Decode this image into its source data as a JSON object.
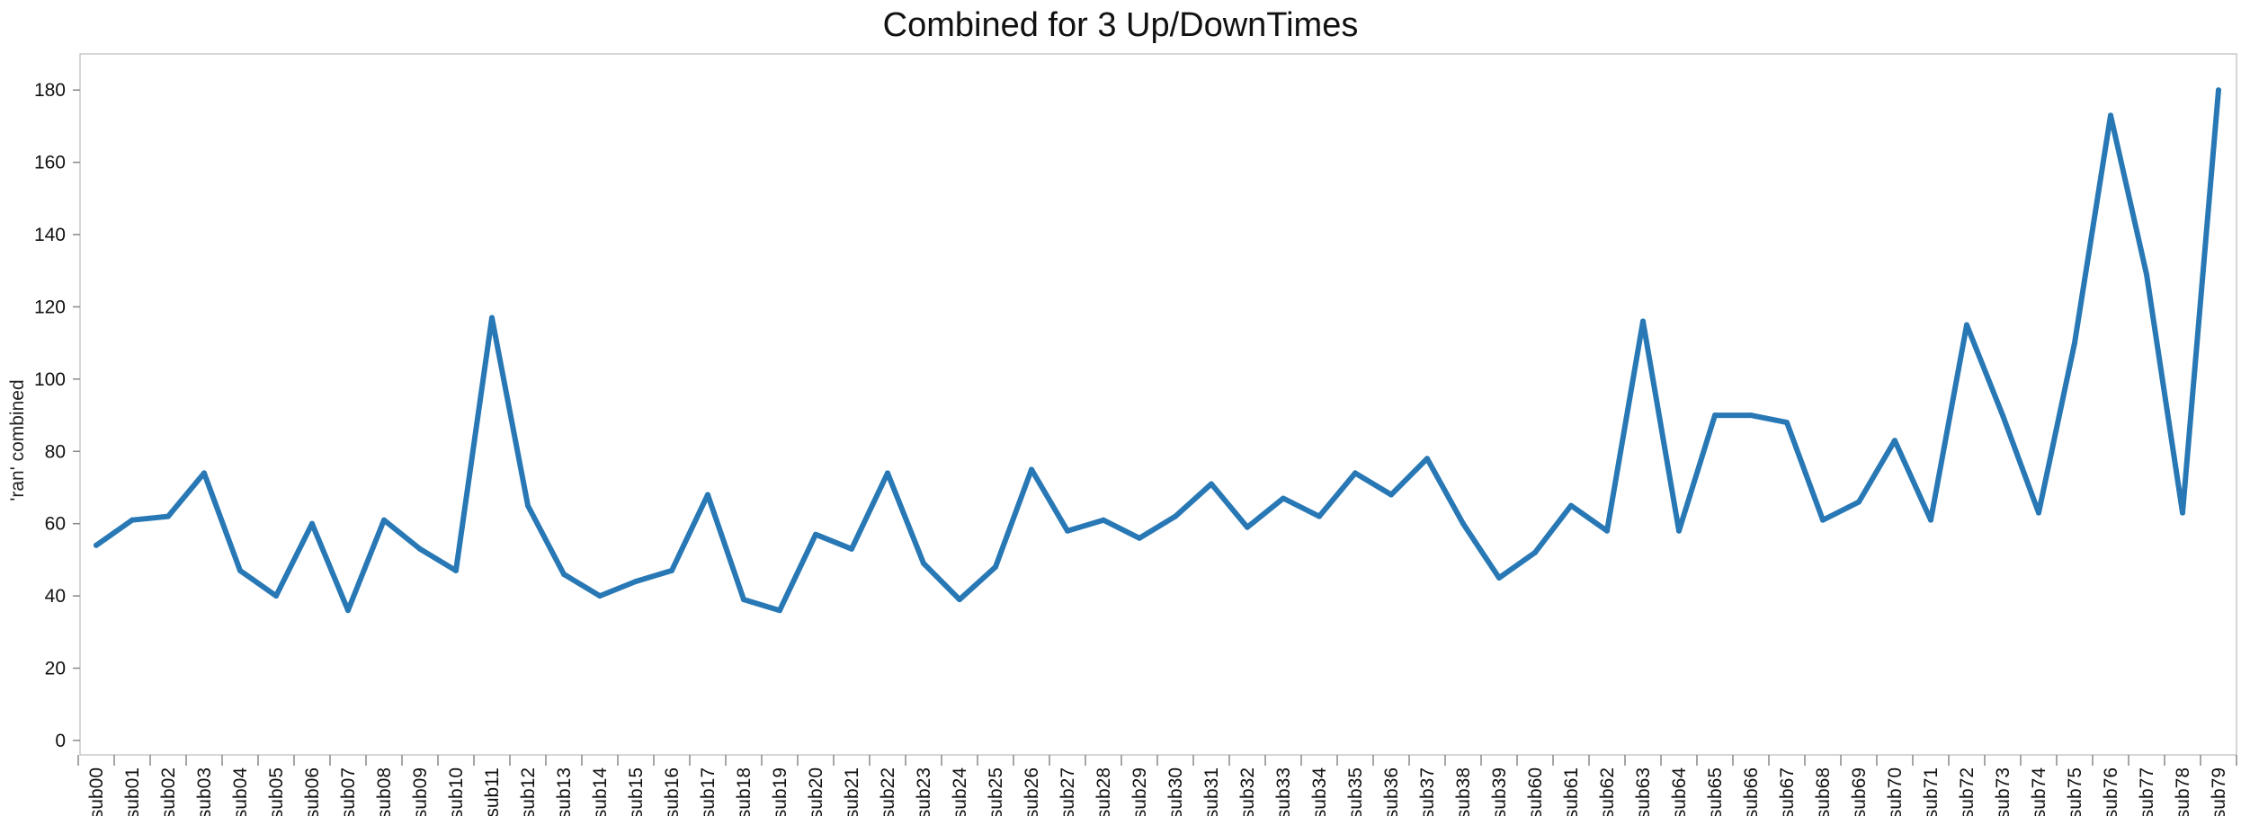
{
  "chart_data": {
    "type": "line",
    "title": "Combined for 3 Up/DownTimes",
    "xlabel": "",
    "ylabel": "'ran' combined",
    "ylim": [
      -4,
      190
    ],
    "yticks": [
      0,
      20,
      40,
      60,
      80,
      100,
      120,
      140,
      160,
      180
    ],
    "grid": false,
    "line_color": "#2878b5",
    "categories": [
      "sub00",
      "sub01",
      "sub02",
      "sub03",
      "sub04",
      "sub05",
      "sub06",
      "sub07",
      "sub08",
      "sub09",
      "sub10",
      "sub11",
      "sub12",
      "sub13",
      "sub14",
      "sub15",
      "sub16",
      "sub17",
      "sub18",
      "sub19",
      "sub20",
      "sub21",
      "sub22",
      "sub23",
      "sub24",
      "sub25",
      "sub26",
      "sub27",
      "sub28",
      "sub29",
      "sub30",
      "sub31",
      "sub32",
      "sub33",
      "sub34",
      "sub35",
      "sub36",
      "sub37",
      "sub38",
      "sub39",
      "sub60",
      "sub61",
      "sub62",
      "sub63",
      "sub64",
      "sub65",
      "sub66",
      "sub67",
      "sub68",
      "sub69",
      "sub70",
      "sub71",
      "sub72",
      "sub73",
      "sub74",
      "sub75",
      "sub76",
      "sub77",
      "sub78",
      "sub79"
    ],
    "values": [
      54,
      61,
      62,
      74,
      47,
      40,
      60,
      36,
      61,
      53,
      47,
      117,
      65,
      46,
      40,
      44,
      47,
      68,
      39,
      36,
      57,
      53,
      74,
      49,
      39,
      48,
      75,
      58,
      61,
      56,
      62,
      71,
      59,
      67,
      62,
      74,
      68,
      78,
      60,
      45,
      52,
      65,
      58,
      116,
      58,
      90,
      90,
      88,
      61,
      66,
      83,
      61,
      115,
      90,
      63,
      110,
      173,
      129,
      63,
      180
    ]
  }
}
